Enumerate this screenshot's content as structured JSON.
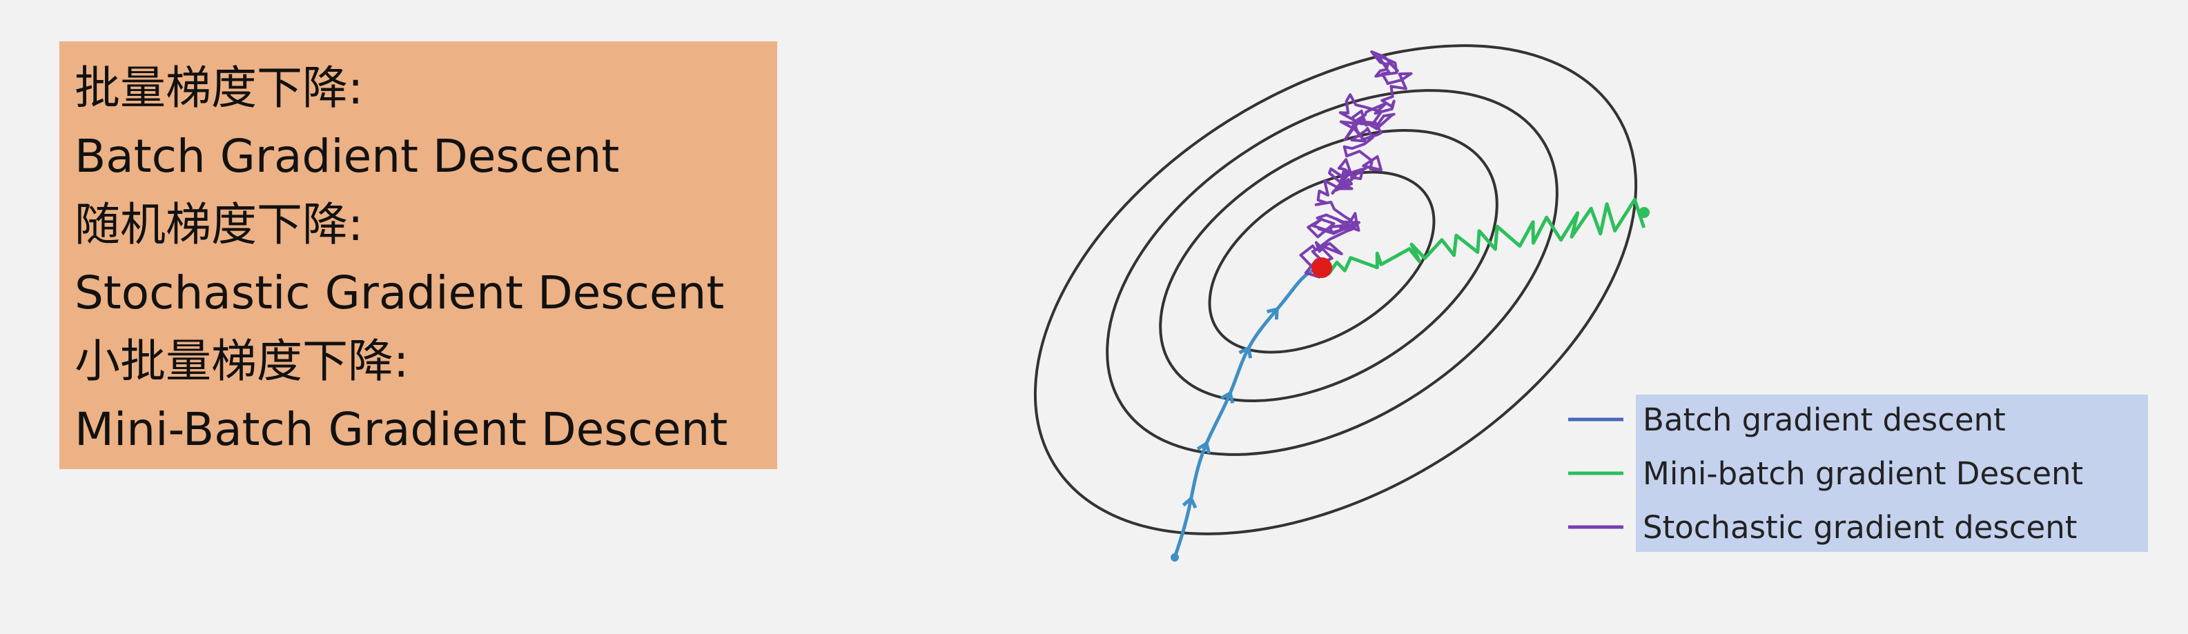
{
  "lines": [
    "批量梯度下降:",
    "Batch Gradient Descent",
    "随机梯度下降:",
    "Stochastic Gradient Descent",
    "小批量梯度下降:",
    "Mini-Batch Gradient Descent"
  ],
  "legend": {
    "items": [
      {
        "label": "Batch gradient descent",
        "color": "#4a66bf"
      },
      {
        "label": "Mini-batch gradient Descent",
        "color": "#2dbf5c"
      },
      {
        "label": "Stochastic gradient descent",
        "color": "#7a3eb0"
      }
    ],
    "highlight_color": "#c4d2ee"
  },
  "colors": {
    "box_background": "#ecb185",
    "contour": "#333333",
    "minimum": "#e01b1b",
    "batch_path": "#3f8fc4"
  }
}
